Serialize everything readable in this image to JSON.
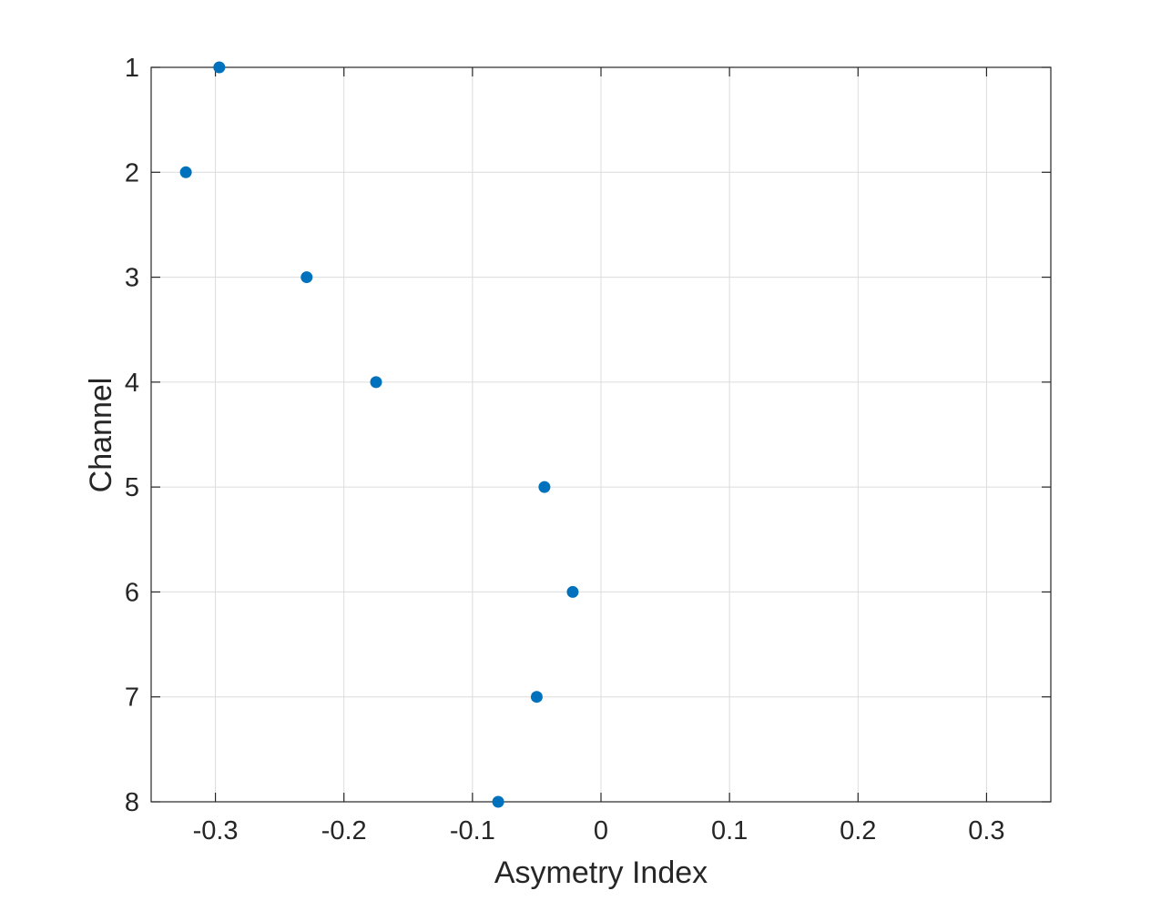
{
  "chart_data": {
    "type": "scatter",
    "title": "",
    "xlabel": "Asymetry Index",
    "ylabel": "Channel",
    "xlim": [
      -0.35,
      0.35
    ],
    "ylim": [
      1,
      8
    ],
    "y_reversed": true,
    "grid": true,
    "legend": "none",
    "xticks": [
      -0.3,
      -0.2,
      -0.1,
      0,
      0.1,
      0.2,
      0.3
    ],
    "xtick_labels": [
      "-0.3",
      "-0.2",
      "-0.1",
      "0",
      "0.1",
      "0.2",
      "0.3"
    ],
    "yticks": [
      1,
      2,
      3,
      4,
      5,
      6,
      7,
      8
    ],
    "ytick_labels": [
      "1",
      "2",
      "3",
      "4",
      "5",
      "6",
      "7",
      "8"
    ],
    "marker_color": "#0072bd",
    "points": [
      {
        "x": -0.297,
        "y": 1
      },
      {
        "x": -0.323,
        "y": 2
      },
      {
        "x": -0.229,
        "y": 3
      },
      {
        "x": -0.175,
        "y": 4
      },
      {
        "x": -0.044,
        "y": 5
      },
      {
        "x": -0.022,
        "y": 6
      },
      {
        "x": -0.05,
        "y": 7
      },
      {
        "x": -0.08,
        "y": 8
      }
    ]
  }
}
